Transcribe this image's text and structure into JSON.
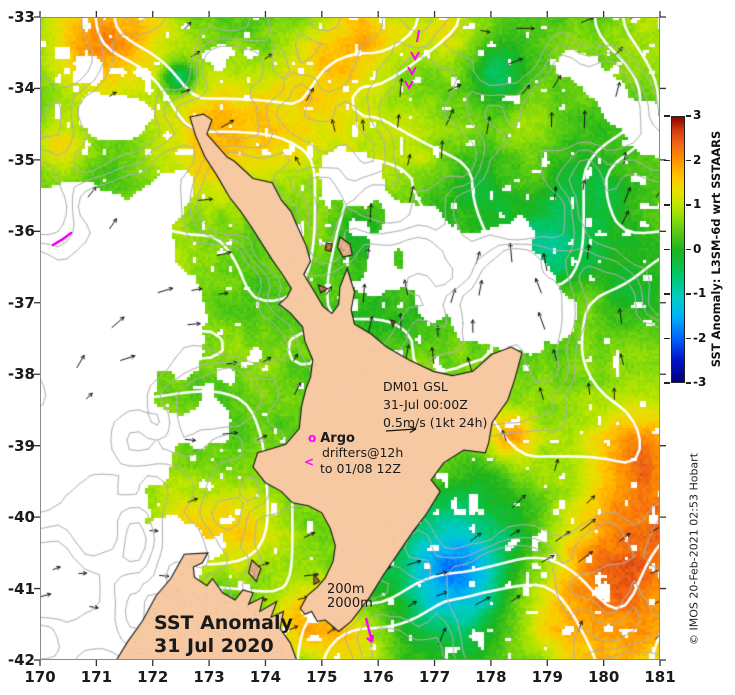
{
  "title_block": {
    "line1": "SST Anomaly",
    "line2": "31 Jul 2020"
  },
  "axes": {
    "x_ticks": [
      "170",
      "171",
      "172",
      "173",
      "174",
      "175",
      "176",
      "177",
      "178",
      "179",
      "180",
      "181"
    ],
    "y_ticks": [
      "-33",
      "-34",
      "-35",
      "-36",
      "-37",
      "-38",
      "-39",
      "-40",
      "-41",
      "-42"
    ]
  },
  "colorbar": {
    "title": "SST Anomaly: L3SM-6d wrt SSTAARS",
    "tick_labels": [
      "3",
      "2",
      "1",
      "0",
      "-1",
      "-2",
      "-3"
    ],
    "min": -3,
    "max": 3,
    "stops": [
      [
        -3,
        "#00007F"
      ],
      [
        -2.5,
        "#0014C8"
      ],
      [
        -2,
        "#0064FF"
      ],
      [
        -1.5,
        "#00B4F5"
      ],
      [
        -1.1,
        "#00CCC8"
      ],
      [
        -0.7,
        "#00C87D"
      ],
      [
        -0.3,
        "#0FBE3C"
      ],
      [
        0,
        "#1EB41E"
      ],
      [
        0.35,
        "#50C814"
      ],
      [
        0.7,
        "#8CDC0A"
      ],
      [
        1,
        "#BEE600"
      ],
      [
        1.3,
        "#E6E100"
      ],
      [
        1.6,
        "#FFC800"
      ],
      [
        2,
        "#FF9600"
      ],
      [
        2.4,
        "#F06414"
      ],
      [
        2.7,
        "#D23C0F"
      ],
      [
        3,
        "#8C0000"
      ]
    ]
  },
  "annotations": {
    "gsl": {
      "line1": "DM01 GSL",
      "line2": "31-Jul 00:00Z",
      "line3": "0.5m/s (1kt 24h)"
    },
    "argo": {
      "marker": "o",
      "name": "Argo",
      "line2": "drifters@12h",
      "pointer": "<",
      "line3": "to 01/08 12Z"
    },
    "depth": {
      "line1": "200m",
      "line2": "2000m"
    },
    "credit": "© IMOS 20-Feb-2021 02:53 Hobart"
  },
  "map": {
    "lon_range": [
      170,
      181
    ],
    "lat_range": [
      -42,
      -33
    ],
    "land_color": "#F6C9A3",
    "coast_color": "#151515",
    "contour_gray": "#b0b0b0",
    "contour_white": "#ffffff",
    "vector_color": "#161616",
    "magenta": "#FF00FF",
    "seed": 11,
    "base_anomaly": 0.45,
    "warm_blobs": [
      [
        171.0,
        -33.5,
        60,
        1.5
      ],
      [
        172.9,
        -34.6,
        55,
        1.3
      ],
      [
        174.6,
        -34.4,
        75,
        1.0
      ],
      [
        175.6,
        -33.3,
        50,
        1.2
      ],
      [
        177.2,
        -33.2,
        35,
        0.9
      ],
      [
        170.3,
        -34.8,
        30,
        1.2
      ],
      [
        176.4,
        -34.9,
        40,
        0.6
      ],
      [
        171.2,
        -38.35,
        22,
        1.5
      ],
      [
        173.5,
        -40.1,
        45,
        1.0
      ],
      [
        174.7,
        -41.55,
        40,
        1.4
      ],
      [
        175.6,
        -41.9,
        35,
        1.2
      ],
      [
        178.35,
        -38.85,
        28,
        1.3
      ],
      [
        180.6,
        -39.15,
        55,
        1.3
      ],
      [
        180.3,
        -41.35,
        110,
        1.5
      ],
      [
        181.0,
        -40.3,
        60,
        1.0
      ],
      [
        176.6,
        -38.35,
        35,
        0.7
      ],
      [
        175.9,
        -37.9,
        30,
        0.6
      ],
      [
        172.5,
        -40.3,
        35,
        0.8
      ]
    ],
    "cool_blobs": [
      [
        177.45,
        -41.0,
        55,
        -1.6
      ],
      [
        176.95,
        -40.45,
        55,
        -0.9
      ],
      [
        178.1,
        -40.1,
        65,
        -0.7
      ],
      [
        172.45,
        -33.85,
        16,
        -1.6
      ],
      [
        178.1,
        -33.8,
        28,
        -1.1
      ],
      [
        179.4,
        -36.0,
        60,
        -0.7
      ],
      [
        178.6,
        -36.5,
        40,
        -0.5
      ],
      [
        180.9,
        -36.9,
        45,
        -0.5
      ],
      [
        175.6,
        -36.0,
        25,
        -0.5
      ],
      [
        177.8,
        -35.3,
        35,
        -0.55
      ]
    ],
    "cloud_blobs": [
      [
        170.6,
        -36.3,
        70,
        0.5
      ],
      [
        170.5,
        -37.6,
        80,
        0.55
      ],
      [
        170.8,
        -39.2,
        85,
        0.55
      ],
      [
        170.6,
        -40.9,
        90,
        0.6
      ],
      [
        171.6,
        -41.8,
        60,
        0.4
      ],
      [
        171.9,
        -36.6,
        45,
        0.4
      ],
      [
        172.2,
        -35.6,
        40,
        0.35
      ],
      [
        171.4,
        -34.4,
        35,
        0.3
      ],
      [
        173.3,
        -33.6,
        30,
        0.3
      ],
      [
        174.5,
        -33.9,
        25,
        0.25
      ],
      [
        177.6,
        -36.75,
        52,
        0.55
      ],
      [
        178.35,
        -36.95,
        40,
        0.45
      ],
      [
        176.9,
        -36.2,
        30,
        0.3
      ],
      [
        175.9,
        -35.2,
        30,
        0.3
      ],
      [
        179.9,
        -33.8,
        30,
        0.3
      ],
      [
        180.8,
        -34.6,
        35,
        0.35
      ],
      [
        179.0,
        -37.3,
        28,
        0.3
      ],
      [
        172.9,
        -38.6,
        40,
        0.35
      ],
      [
        172.3,
        -37.3,
        35,
        0.3
      ]
    ],
    "land_polygons": {
      "north_island": [
        [
          172.66,
          -34.4
        ],
        [
          172.9,
          -34.36
        ],
        [
          173.05,
          -34.44
        ],
        [
          172.96,
          -34.64
        ],
        [
          173.32,
          -34.96
        ],
        [
          173.45,
          -35.02
        ],
        [
          173.78,
          -35.26
        ],
        [
          174.12,
          -35.32
        ],
        [
          174.28,
          -35.56
        ],
        [
          174.45,
          -35.72
        ],
        [
          174.55,
          -35.9
        ],
        [
          174.72,
          -36.2
        ],
        [
          174.8,
          -36.42
        ],
        [
          174.68,
          -36.6
        ],
        [
          174.85,
          -36.82
        ],
        [
          175.02,
          -37.05
        ],
        [
          175.18,
          -37.15
        ],
        [
          175.3,
          -37.02
        ],
        [
          175.32,
          -36.78
        ],
        [
          175.45,
          -36.52
        ],
        [
          175.58,
          -36.85
        ],
        [
          175.52,
          -37.1
        ],
        [
          175.58,
          -37.3
        ],
        [
          175.88,
          -37.44
        ],
        [
          176.15,
          -37.62
        ],
        [
          176.55,
          -37.8
        ],
        [
          176.98,
          -37.96
        ],
        [
          177.32,
          -38.02
        ],
        [
          177.68,
          -37.96
        ],
        [
          178.02,
          -37.72
        ],
        [
          178.36,
          -37.62
        ],
        [
          178.55,
          -37.7
        ],
        [
          178.42,
          -38.08
        ],
        [
          178.3,
          -38.36
        ],
        [
          178.02,
          -38.68
        ],
        [
          177.96,
          -38.96
        ],
        [
          177.9,
          -39.1
        ],
        [
          177.52,
          -39.06
        ],
        [
          177.16,
          -39.24
        ],
        [
          176.94,
          -39.48
        ],
        [
          177.1,
          -39.64
        ],
        [
          176.86,
          -39.95
        ],
        [
          176.62,
          -40.2
        ],
        [
          176.36,
          -40.5
        ],
        [
          176.1,
          -40.8
        ],
        [
          175.85,
          -41.12
        ],
        [
          175.52,
          -41.46
        ],
        [
          175.3,
          -41.6
        ],
        [
          175.06,
          -41.44
        ],
        [
          174.92,
          -41.46
        ],
        [
          174.82,
          -41.32
        ],
        [
          174.7,
          -41.36
        ],
        [
          174.62,
          -41.28
        ],
        [
          174.74,
          -41.1
        ],
        [
          174.92,
          -40.98
        ],
        [
          175.06,
          -40.85
        ],
        [
          175.2,
          -40.62
        ],
        [
          175.24,
          -40.4
        ],
        [
          175.15,
          -40.16
        ],
        [
          175.0,
          -39.94
        ],
        [
          174.76,
          -39.84
        ],
        [
          174.48,
          -39.8
        ],
        [
          174.28,
          -39.64
        ],
        [
          174.0,
          -39.52
        ],
        [
          173.78,
          -39.3
        ],
        [
          173.86,
          -39.1
        ],
        [
          174.12,
          -39.04
        ],
        [
          174.36,
          -38.98
        ],
        [
          174.6,
          -38.76
        ],
        [
          174.64,
          -38.45
        ],
        [
          174.72,
          -38.2
        ],
        [
          174.8,
          -38.04
        ],
        [
          174.84,
          -37.8
        ],
        [
          174.7,
          -37.54
        ],
        [
          174.66,
          -37.34
        ],
        [
          174.44,
          -37.14
        ],
        [
          174.24,
          -37.02
        ],
        [
          174.38,
          -36.92
        ],
        [
          174.46,
          -36.8
        ],
        [
          174.3,
          -36.6
        ],
        [
          174.12,
          -36.4
        ],
        [
          173.96,
          -36.2
        ],
        [
          173.76,
          -35.95
        ],
        [
          173.56,
          -35.72
        ],
        [
          173.36,
          -35.52
        ],
        [
          173.14,
          -35.22
        ],
        [
          172.92,
          -34.95
        ],
        [
          172.76,
          -34.66
        ]
      ],
      "south_island": [
        [
          171.28,
          -42.1
        ],
        [
          171.55,
          -41.75
        ],
        [
          171.82,
          -41.45
        ],
        [
          172.06,
          -41.1
        ],
        [
          172.32,
          -40.86
        ],
        [
          172.56,
          -40.52
        ],
        [
          172.98,
          -40.5
        ],
        [
          172.88,
          -40.64
        ],
        [
          172.72,
          -40.7
        ],
        [
          172.74,
          -40.84
        ],
        [
          172.96,
          -40.96
        ],
        [
          173.06,
          -40.86
        ],
        [
          173.24,
          -41.06
        ],
        [
          173.46,
          -41.16
        ],
        [
          173.6,
          -41.02
        ],
        [
          173.78,
          -41.06
        ],
        [
          173.7,
          -41.22
        ],
        [
          173.96,
          -41.12
        ],
        [
          173.9,
          -41.32
        ],
        [
          174.2,
          -41.18
        ],
        [
          174.1,
          -41.4
        ],
        [
          174.32,
          -41.32
        ],
        [
          174.26,
          -41.56
        ],
        [
          174.44,
          -41.76
        ],
        [
          174.6,
          -42.1
        ]
      ],
      "islands": [
        [
          [
            175.32,
            -36.08
          ],
          [
            175.5,
            -36.18
          ],
          [
            175.54,
            -36.33
          ],
          [
            175.38,
            -36.36
          ],
          [
            175.28,
            -36.22
          ]
        ],
        [
          [
            175.08,
            -36.16
          ],
          [
            175.18,
            -36.18
          ],
          [
            175.16,
            -36.28
          ],
          [
            175.06,
            -36.26
          ]
        ],
        [
          [
            174.94,
            -36.75
          ],
          [
            175.1,
            -36.8
          ],
          [
            174.98,
            -36.86
          ]
        ],
        [
          [
            173.76,
            -40.6
          ],
          [
            173.92,
            -40.72
          ],
          [
            173.84,
            -40.9
          ],
          [
            173.7,
            -40.78
          ]
        ],
        [
          [
            174.86,
            -40.8
          ],
          [
            174.96,
            -40.9
          ],
          [
            174.86,
            -40.94
          ]
        ],
        [
          [
            176.22,
            -37.24
          ],
          [
            176.3,
            -37.26
          ],
          [
            176.26,
            -37.33
          ]
        ]
      ]
    },
    "drifter_marks": {
      "chevrons": [
        [
          415,
          52
        ],
        [
          412,
          67
        ],
        [
          409,
          81
        ]
      ],
      "dash": [
        [
          419,
          30
        ],
        [
          417,
          42
        ]
      ],
      "streak": [
        [
          53,
          245
        ],
        [
          58,
          242
        ],
        [
          63,
          239
        ],
        [
          67,
          236
        ],
        [
          71,
          233
        ]
      ],
      "bottom_arrow": [
        [
          366,
          618
        ],
        [
          372,
          642
        ]
      ],
      "gsl_arrow": [
        [
          386,
          431
        ],
        [
          416,
          429
        ]
      ]
    }
  }
}
